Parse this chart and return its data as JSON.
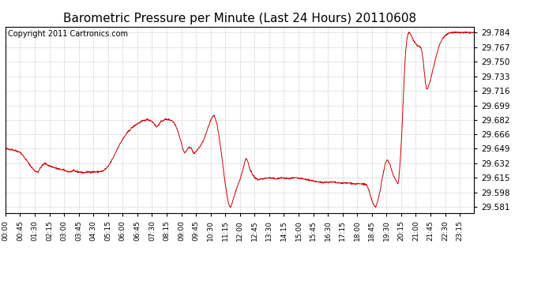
{
  "title": "Barometric Pressure per Minute (Last 24 Hours) 20110608",
  "copyright": "Copyright 2011 Cartronics.com",
  "line_color": "#cc0000",
  "background_color": "#ffffff",
  "grid_color": "#cccccc",
  "yticks": [
    29.581,
    29.598,
    29.615,
    29.632,
    29.649,
    29.666,
    29.682,
    29.699,
    29.716,
    29.733,
    29.75,
    29.767,
    29.784
  ],
  "ylim": [
    29.574,
    29.791
  ],
  "xtick_labels": [
    "00:00",
    "00:45",
    "01:30",
    "02:15",
    "03:00",
    "03:45",
    "04:30",
    "05:15",
    "06:00",
    "06:45",
    "07:30",
    "08:15",
    "09:00",
    "09:45",
    "10:30",
    "11:15",
    "12:00",
    "12:45",
    "13:30",
    "14:15",
    "15:00",
    "15:45",
    "16:30",
    "17:15",
    "18:00",
    "18:45",
    "19:30",
    "20:15",
    "21:00",
    "21:45",
    "22:30",
    "23:15"
  ],
  "title_fontsize": 11,
  "copyright_fontsize": 7
}
